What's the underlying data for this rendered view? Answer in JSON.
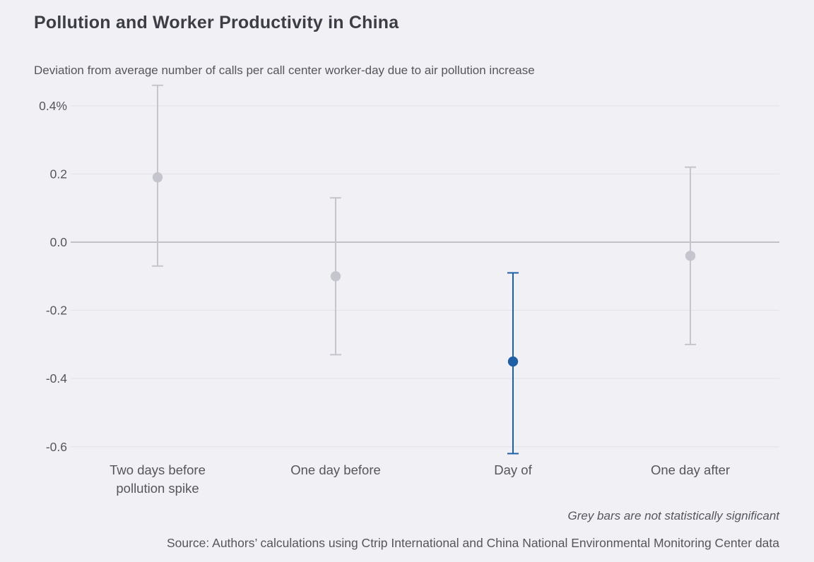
{
  "title": "Pollution and Worker Productivity in China",
  "subtitle": "Deviation from average number of calls per call center worker-day due to air pollution increase",
  "note": "Grey bars are not statistically significant",
  "source": "Source: Authors’ calculations using Ctrip International and China National Environmental Monitoring Center data",
  "colors": {
    "background": "#f1f1f5",
    "title_text": "#3d3d45",
    "body_text": "#55555c",
    "axis_text": "#55555e",
    "gridline": "#e3e3e9",
    "zero_line": "#a5a5ad",
    "grey_series": "#c5c5cd",
    "blue_series": "#1f5fa6"
  },
  "chart_data": {
    "type": "scatter",
    "subtype": "point-with-error-bars",
    "categories": [
      "Two days before\npollution spike",
      "One day before",
      "Day of",
      "One day after"
    ],
    "series": [
      {
        "name": "Deviation from average calls per worker-day (%)",
        "values": [
          0.19,
          -0.1,
          -0.35,
          -0.04
        ],
        "ci_high": [
          0.46,
          0.13,
          -0.09,
          0.22
        ],
        "ci_low": [
          -0.07,
          -0.33,
          -0.62,
          -0.3
        ],
        "significant": [
          false,
          false,
          true,
          false
        ]
      }
    ],
    "yticks": [
      0.4,
      0.2,
      0.0,
      -0.2,
      -0.4,
      -0.6
    ],
    "ytick_labels": [
      "0.4%",
      "0.2",
      "0.0",
      "-0.2",
      "-0.4",
      "-0.6"
    ],
    "ylim": [
      0.47,
      -0.66
    ],
    "grid": true,
    "legend": "none",
    "annotations": [
      "Grey bars are not statistically significant"
    ]
  }
}
